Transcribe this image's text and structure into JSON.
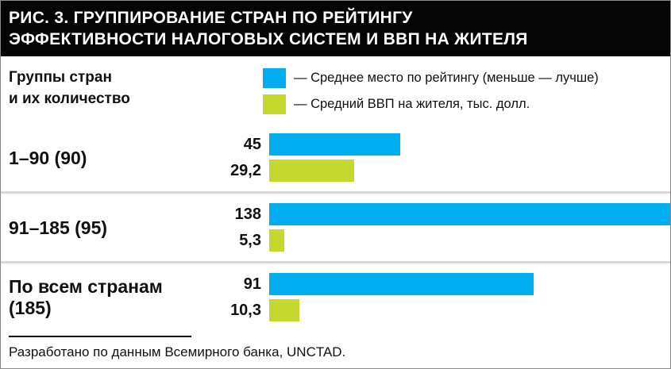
{
  "header": {
    "title_line1": "РИС. 3. ГРУППИРОВАНИЕ СТРАН ПО РЕЙТИНГУ",
    "title_line2": "ЭФФЕКТИВНОСТИ НАЛОГОВЫХ СИСТЕМ И ВВП НА ЖИТЕЛЯ"
  },
  "legend": {
    "axis_label_line1": "Группы стран",
    "axis_label_line2": "и их количество",
    "items": [
      {
        "label": "— Среднее место по рейтингу (меньше — лучше)",
        "color": "#00aeef"
      },
      {
        "label": "— Средний ВВП на жителя, тыс. долл.",
        "color": "#c4d82e"
      }
    ]
  },
  "chart_data": {
    "type": "bar",
    "orientation": "horizontal",
    "title": "РИС. 3. ГРУППИРОВАНИЕ СТРАН ПО РЕЙТИНГУ ЭФФЕКТИВНОСТИ НАЛОГОВЫХ СИСТЕМ И ВВП НА ЖИТЕЛЯ",
    "categories": [
      "1–90 (90)",
      "91–185 (95)",
      "По всем странам (185)"
    ],
    "series": [
      {
        "name": "Среднее место по рейтингу (меньше — лучше)",
        "color": "#00aeef",
        "values": [
          45,
          138,
          91
        ]
      },
      {
        "name": "Средний ВВП на жителя, тыс. долл.",
        "color": "#c4d82e",
        "values": [
          29.2,
          5.3,
          10.3
        ]
      }
    ],
    "xlim": [
      0,
      138
    ],
    "grid": false,
    "legend_position": "top",
    "rows": [
      {
        "label": "1–90 (90)",
        "rating": 45,
        "rating_label": "45",
        "gdp": 29.2,
        "gdp_label": "29,2"
      },
      {
        "label": "91–185 (95)",
        "rating": 138,
        "rating_label": "138",
        "gdp": 5.3,
        "gdp_label": "5,3"
      },
      {
        "label": "По всем странам (185)",
        "rating": 91,
        "rating_label": "91",
        "gdp": 10.3,
        "gdp_label": "10,3"
      }
    ]
  },
  "footer": {
    "source_text": "Разработано по данным Всемирного банка, UNCTAD."
  },
  "colors": {
    "rating_bar": "#00aeef",
    "gdp_bar": "#c4d82e",
    "header_bg": "#050505",
    "header_text": "#ffffff",
    "separator": "#d8d8d8"
  }
}
